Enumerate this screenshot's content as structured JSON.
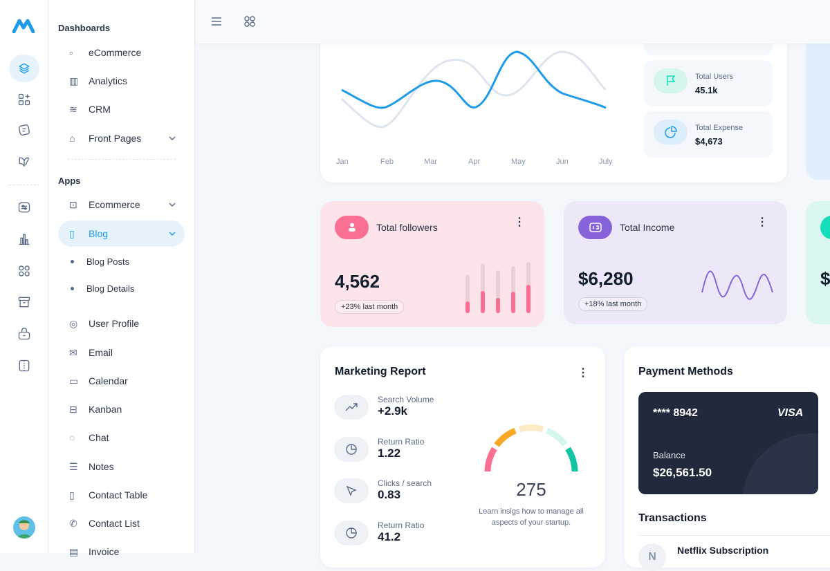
{
  "rail": {
    "icons": [
      "layers-icon",
      "apps-plus-icon",
      "notes-icon",
      "book-icon",
      "sliders-icon",
      "bar-chart-icon",
      "grid-icon",
      "archive-icon",
      "lock-bag-icon",
      "columns-icon"
    ]
  },
  "sidebar": {
    "dashboards_title": "Dashboards",
    "dashboards": [
      {
        "label": "eCommerce"
      },
      {
        "label": "Analytics"
      },
      {
        "label": "CRM"
      },
      {
        "label": "Front Pages"
      }
    ],
    "apps_title": "Apps",
    "apps": [
      {
        "label": "Ecommerce"
      },
      {
        "label": "Blog"
      }
    ],
    "blog_sub": [
      {
        "label": "Blog Posts"
      },
      {
        "label": "Blog Details"
      }
    ],
    "more": [
      {
        "label": "User Profile"
      },
      {
        "label": "Email"
      },
      {
        "label": "Calendar"
      },
      {
        "label": "Kanban"
      },
      {
        "label": "Chat"
      },
      {
        "label": "Notes"
      },
      {
        "label": "Contact Table"
      },
      {
        "label": "Contact List"
      },
      {
        "label": "Invoice"
      }
    ]
  },
  "chart": {
    "months": [
      "Jan",
      "Feb",
      "Mar",
      "Apr",
      "May",
      "Jun",
      "July"
    ],
    "colors": {
      "primary": "#1e9be9",
      "secondary": "#dfe5ef"
    }
  },
  "mini_stats": [
    {
      "label": "Total Users",
      "value": "45.1k",
      "icon": "flag-icon"
    },
    {
      "label": "Total Expense",
      "value": "$4,673",
      "icon": "pie-icon"
    }
  ],
  "followers": {
    "title": "Total followers",
    "value": "4,562",
    "change": "+23% last month",
    "bars": [
      0.3,
      0.45,
      0.35,
      0.45,
      0.55
    ],
    "color": "#fb6f92"
  },
  "income": {
    "title": "Total Income",
    "value": "$6,280",
    "change": "+18% last month",
    "color": "#8763da"
  },
  "third_card": {
    "value": "$"
  },
  "marketing": {
    "title": "Marketing Report",
    "rows": [
      {
        "label": "Search Volume",
        "value": "+2.9k"
      },
      {
        "label": "Return Ratio",
        "value": "1.22"
      },
      {
        "label": "Clicks / search",
        "value": "0.83"
      },
      {
        "label": "Return Ratio",
        "value": "41.2"
      }
    ],
    "gauge_value": "275",
    "gauge_text": "Learn insigs how to manage all aspects of your startup."
  },
  "payment": {
    "title": "Payment Methods",
    "card_number": "**** 8942",
    "brand": "VISA",
    "balance_label": "Balance",
    "balance": "$26,561.50",
    "transactions_title": "Transactions",
    "transactions": [
      {
        "label": "Netflix Subscription",
        "initial": "N"
      }
    ]
  }
}
